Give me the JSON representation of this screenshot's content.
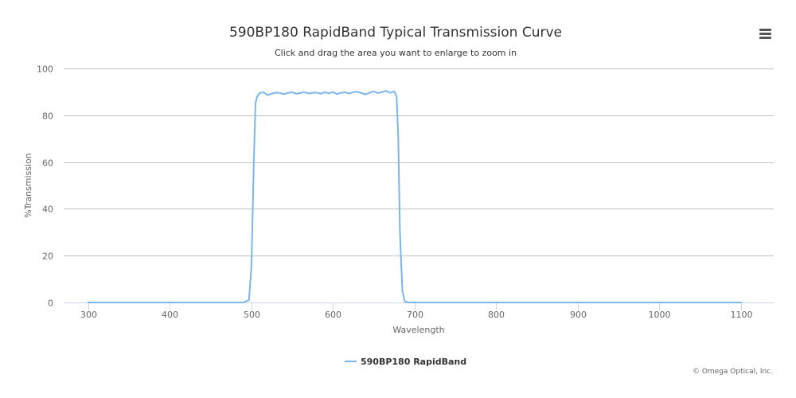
{
  "colors": {
    "series": "#7cb5ec",
    "grid": "#c0c0c0",
    "axis_line": "#ccd6eb",
    "title_text": "#333333",
    "label_text": "#666666",
    "legend_text": "#333333",
    "credit_text": "#666666",
    "menu_icon": "#555555"
  },
  "menu": {
    "icon": "hamburger-menu-icon"
  },
  "chart_data": {
    "type": "line",
    "title": "590BP180 RapidBand Typical Transmission Curve",
    "subtitle": "Click and drag the area you want to enlarge to zoom in",
    "xlabel": "Wavelength",
    "ylabel": "%Transmission",
    "xlim": [
      270,
      1140
    ],
    "ylim": [
      0,
      100
    ],
    "x_ticks": [
      300,
      400,
      500,
      600,
      700,
      800,
      900,
      1000,
      1100
    ],
    "y_ticks": [
      0,
      20,
      40,
      60,
      80,
      100
    ],
    "grid": true,
    "legend_position": "bottom-center",
    "credits": "© Omega Optical, Inc.",
    "series": [
      {
        "name": "590BP180 RapidBand",
        "x": [
          300,
          490,
          497,
          500,
          503,
          505,
          507,
          510,
          515,
          520,
          525,
          530,
          535,
          540,
          545,
          550,
          555,
          560,
          565,
          570,
          575,
          580,
          585,
          590,
          595,
          600,
          605,
          610,
          615,
          620,
          625,
          630,
          635,
          640,
          645,
          650,
          655,
          660,
          665,
          670,
          675,
          678,
          680,
          682,
          685,
          688,
          692,
          700,
          750,
          800,
          900,
          1000,
          1100
        ],
        "y": [
          0,
          0,
          1,
          15,
          60,
          85,
          88,
          89.5,
          89.8,
          88.6,
          89.2,
          89.7,
          89.5,
          89,
          89.6,
          89.8,
          89.2,
          89.5,
          89.9,
          89.3,
          89.6,
          89.7,
          89.2,
          89.8,
          89.4,
          89.9,
          89.1,
          89.6,
          89.8,
          89.3,
          89.9,
          90,
          89.5,
          88.9,
          89.7,
          90.2,
          89.5,
          89.9,
          90.4,
          89.6,
          90.2,
          88,
          70,
          30,
          5,
          0.5,
          0,
          0,
          0,
          0,
          0,
          0,
          0
        ]
      }
    ]
  }
}
